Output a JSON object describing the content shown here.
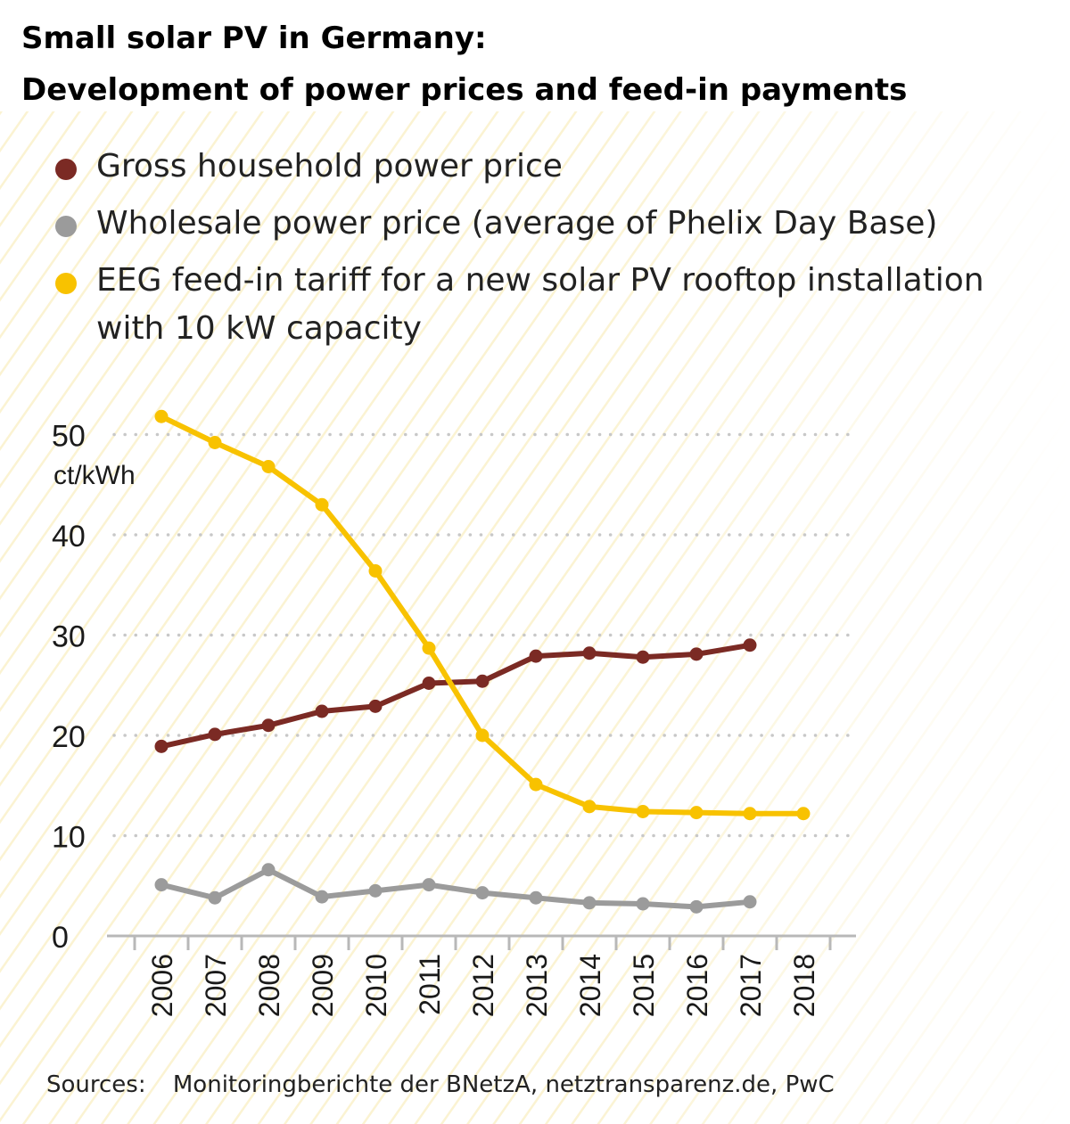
{
  "chart_data": {
    "type": "line",
    "title": "Small solar PV in Germany:",
    "subtitle": "Development of power prices and feed-in payments",
    "ylabel": "ct/kWh",
    "xlabel": "",
    "ylim": [
      0,
      50
    ],
    "yticks": [
      0,
      10,
      20,
      30,
      40,
      50
    ],
    "categories": [
      "2006",
      "2007",
      "2008",
      "2009",
      "2010",
      "2011",
      "2012",
      "2013",
      "2014",
      "2015",
      "2016",
      "2017",
      "2018"
    ],
    "grid": "horizontal dotted",
    "legend_position": "top",
    "series": [
      {
        "name": "Gross household power price",
        "color": "#7b2a24",
        "values": [
          18.9,
          20.1,
          21.0,
          22.4,
          22.9,
          25.2,
          25.4,
          27.9,
          28.2,
          27.8,
          28.1,
          29.0,
          null
        ]
      },
      {
        "name": "Wholesale power price (average of Phelix Day Base)",
        "color": "#9b9b9b",
        "values": [
          5.1,
          3.8,
          6.6,
          3.9,
          4.5,
          5.1,
          4.3,
          3.8,
          3.3,
          3.2,
          2.9,
          3.4,
          null
        ]
      },
      {
        "name": "EEG feed-in tariff for a new solar PV rooftop installation with 10 kW capacity",
        "color": "#f8c200",
        "values": [
          51.8,
          49.2,
          46.8,
          43.0,
          36.4,
          28.7,
          20.0,
          15.1,
          12.9,
          12.4,
          12.3,
          12.2,
          12.2
        ]
      }
    ],
    "source": "Monitoringberichte der BNetzA, netztransparenz.de, PwC"
  },
  "footer": {
    "label": "Sources:",
    "text": "Monitoringberichte der BNetzA, netztransparenz.de, PwC"
  }
}
